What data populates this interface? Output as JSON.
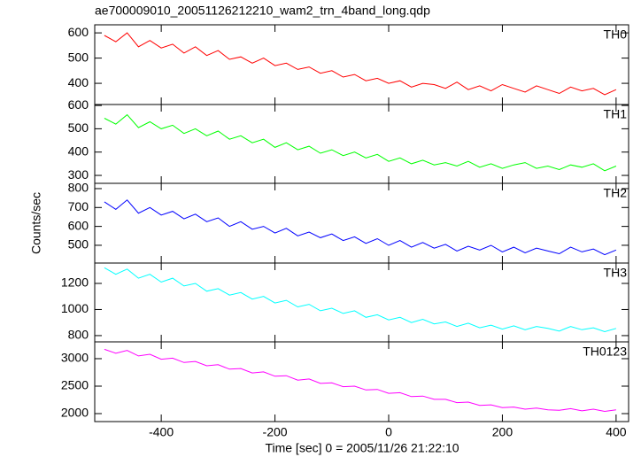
{
  "chart_data": {
    "type": "line",
    "title": "ae700009010_20051126212210_wam2_trn_4band_long.qdp",
    "xlabel": "Time [sec] 0 = 2005/11/26 21:22:10",
    "ylabel": "Counts/sec",
    "xlim": [
      -517,
      422
    ],
    "xticks": [
      -400,
      -200,
      0,
      200,
      400
    ],
    "x": [
      -500,
      -480,
      -460,
      -440,
      -420,
      -400,
      -380,
      -360,
      -340,
      -320,
      -300,
      -280,
      -260,
      -240,
      -220,
      -200,
      -180,
      -160,
      -140,
      -120,
      -100,
      -80,
      -60,
      -40,
      -20,
      0,
      20,
      40,
      60,
      80,
      100,
      120,
      140,
      160,
      180,
      200,
      220,
      240,
      260,
      280,
      300,
      320,
      340,
      360,
      380,
      400
    ],
    "series": [
      {
        "name": "TH0",
        "color": "#ff0000",
        "ylim": [
          316,
          632
        ],
        "yticks": [
          400,
          500,
          600
        ],
        "values": [
          590,
          565,
          600,
          545,
          570,
          540,
          555,
          520,
          545,
          510,
          530,
          495,
          505,
          480,
          500,
          470,
          480,
          455,
          465,
          440,
          450,
          425,
          435,
          410,
          420,
          400,
          410,
          385,
          400,
          395,
          380,
          405,
          375,
          390,
          370,
          395,
          380,
          365,
          390,
          375,
          360,
          385,
          370,
          380,
          355,
          375
        ]
      },
      {
        "name": "TH1",
        "color": "#00ff00",
        "ylim": [
          266,
          604
        ],
        "yticks": [
          300,
          400,
          500,
          600
        ],
        "values": [
          545,
          520,
          560,
          505,
          530,
          500,
          515,
          480,
          500,
          470,
          490,
          455,
          470,
          440,
          455,
          420,
          440,
          410,
          425,
          395,
          410,
          385,
          400,
          375,
          390,
          360,
          375,
          350,
          365,
          345,
          355,
          340,
          360,
          335,
          350,
          330,
          345,
          355,
          330,
          340,
          325,
          345,
          335,
          350,
          320,
          340
        ]
      },
      {
        "name": "TH2",
        "color": "#0000ff",
        "ylim": [
          406,
          828
        ],
        "yticks": [
          500,
          600,
          700,
          800
        ],
        "values": [
          730,
          690,
          740,
          670,
          700,
          660,
          680,
          640,
          665,
          625,
          645,
          600,
          625,
          585,
          600,
          565,
          590,
          550,
          570,
          540,
          560,
          525,
          545,
          510,
          535,
          500,
          525,
          490,
          515,
          485,
          505,
          470,
          495,
          475,
          500,
          465,
          490,
          460,
          485,
          470,
          455,
          490,
          465,
          480,
          450,
          475
        ]
      },
      {
        "name": "TH3",
        "color": "#00ffff",
        "ylim": [
          752,
          1356
        ],
        "yticks": [
          800,
          1000,
          1200
        ],
        "values": [
          1320,
          1270,
          1310,
          1240,
          1270,
          1210,
          1240,
          1180,
          1200,
          1140,
          1160,
          1110,
          1130,
          1080,
          1100,
          1050,
          1070,
          1020,
          1040,
          990,
          1010,
          970,
          990,
          940,
          960,
          920,
          940,
          900,
          925,
          890,
          905,
          870,
          895,
          860,
          880,
          850,
          875,
          845,
          870,
          855,
          835,
          870,
          845,
          860,
          830,
          855
        ]
      },
      {
        "name": "TH0123",
        "color": "#ff00ff",
        "ylim": [
          1855,
          3306
        ],
        "yticks": [
          2000,
          2500,
          3000
        ],
        "values": [
          3170,
          3100,
          3150,
          3050,
          3080,
          2990,
          3010,
          2930,
          2950,
          2870,
          2890,
          2810,
          2820,
          2740,
          2760,
          2680,
          2690,
          2610,
          2630,
          2550,
          2560,
          2490,
          2500,
          2430,
          2440,
          2370,
          2380,
          2310,
          2320,
          2260,
          2260,
          2200,
          2210,
          2150,
          2160,
          2110,
          2120,
          2080,
          2100,
          2070,
          2060,
          2090,
          2050,
          2080,
          2040,
          2070
        ]
      }
    ]
  }
}
